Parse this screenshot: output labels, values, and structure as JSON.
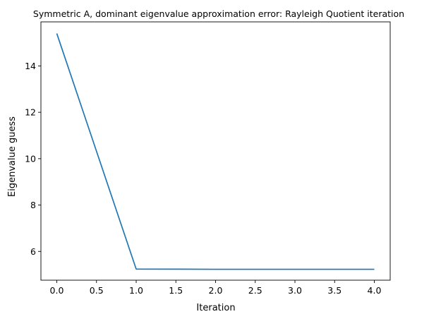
{
  "chart_data": {
    "type": "line",
    "title": "Symmetric A, dominant eigenvalue approximation error: Rayleigh Quotient iteration",
    "xlabel": "Iteration",
    "ylabel": "Eigenvalue guess",
    "x": [
      0,
      1,
      2,
      3,
      4
    ],
    "series": [
      {
        "values": [
          15.4,
          5.24,
          5.23,
          5.23,
          5.23
        ],
        "color": "#1f77b4"
      }
    ],
    "xlim": [
      -0.2,
      4.2
    ],
    "ylim": [
      4.76,
      15.9
    ],
    "xticks": [
      0.0,
      0.5,
      1.0,
      1.5,
      2.0,
      2.5,
      3.0,
      3.5,
      4.0
    ],
    "xtick_labels": [
      "0.0",
      "0.5",
      "1.0",
      "1.5",
      "2.0",
      "2.5",
      "3.0",
      "3.5",
      "4.0"
    ],
    "yticks": [
      6,
      8,
      10,
      12,
      14
    ],
    "ytick_labels": [
      "6",
      "8",
      "10",
      "12",
      "14"
    ],
    "grid": false,
    "legend": "none"
  }
}
